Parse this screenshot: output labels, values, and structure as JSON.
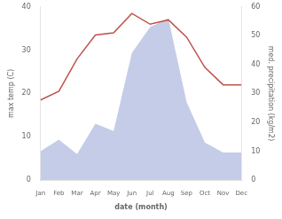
{
  "chart_data": {
    "type": "line",
    "categories": [
      "Jan",
      "Feb",
      "Mar",
      "Apr",
      "May",
      "Jun",
      "Jul",
      "Aug",
      "Sep",
      "Oct",
      "Nov",
      "Dec"
    ],
    "series": [
      {
        "type": "area",
        "axis": "y2",
        "color": "#c5cce8",
        "values": [
          10.0,
          14.0,
          9.0,
          19.5,
          17.0,
          44.0,
          53.0,
          56.0,
          27.0,
          13.0,
          9.5,
          9.5
        ]
      },
      {
        "type": "line",
        "axis": "y",
        "color": "#c0524a",
        "values": [
          18.5,
          20.5,
          28.0,
          33.5,
          34.0,
          38.5,
          36.0,
          37.0,
          33.0,
          26.0,
          22.0,
          22.0
        ]
      }
    ],
    "xlabel": "date (month)",
    "ylabel": "max temp (C)",
    "y2label": "med. precipitation (kg/m2)",
    "ylim": [
      0,
      40
    ],
    "yticks": [
      0,
      10,
      20,
      30,
      40
    ],
    "y2lim": [
      0,
      60
    ],
    "y2ticks": [
      0,
      10,
      20,
      30,
      40,
      50,
      60
    ],
    "grid": false
  }
}
